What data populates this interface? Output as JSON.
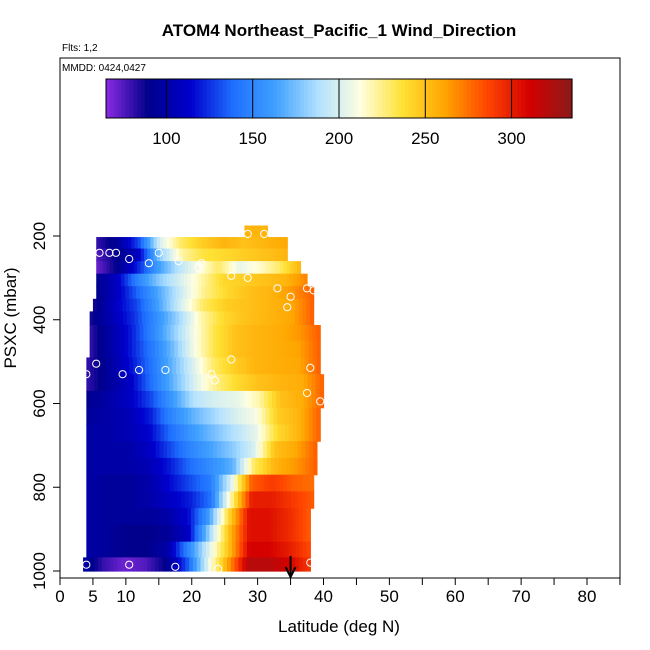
{
  "chart_data": {
    "type": "heatmap",
    "title": "ATOM4 Northeast_Pacific_1 Wind_Direction",
    "flights_note": "Flts: 1,2",
    "dates_note": "MMDD: 0424,0427",
    "xlabel": "Latitude (deg N)",
    "ylabel": "PSXC (mbar)",
    "xlim": [
      0,
      85
    ],
    "ylim": [
      1000,
      100
    ],
    "x_ticks": [
      0,
      5,
      10,
      20,
      30,
      40,
      50,
      60,
      70,
      80
    ],
    "y_ticks": [
      200,
      400,
      600,
      800,
      1000
    ],
    "colorbar": {
      "range": [
        65,
        335
      ],
      "ticks": [
        100,
        150,
        200,
        250,
        300
      ],
      "colors": [
        "#8a2be2",
        "#00008b",
        "#0000cd",
        "#1e6fff",
        "#40a0ff",
        "#b0e0ff",
        "#ffffe0",
        "#ffe135",
        "#ffa500",
        "#ff4500",
        "#d40000",
        "#8b1a1a"
      ]
    },
    "marker": {
      "latitude": 35,
      "label": "arrow"
    },
    "rows": [
      {
        "p": 190,
        "lat_min": 28,
        "lat_max": 31.5,
        "values": [
          255,
          255,
          255,
          255
        ]
      },
      {
        "p": 215,
        "lat_min": 5.5,
        "lat_max": 34.5,
        "values": [
          80,
          95,
          130,
          200,
          230,
          245,
          255,
          250,
          255,
          260
        ]
      },
      {
        "p": 245,
        "lat_min": 5.5,
        "lat_max": 34.5,
        "values": [
          75,
          90,
          110,
          180,
          220,
          235,
          240,
          245,
          250,
          255
        ]
      },
      {
        "p": 275,
        "lat_min": 5.5,
        "lat_max": 36.5,
        "values": [
          70,
          90,
          120,
          160,
          190,
          210,
          230,
          205,
          215,
          230,
          255
        ]
      },
      {
        "p": 305,
        "lat_min": 5.5,
        "lat_max": 37.5,
        "values": [
          90,
          110,
          150,
          180,
          200,
          220,
          240,
          245,
          250,
          255,
          270
        ]
      },
      {
        "p": 335,
        "lat_min": 5.5,
        "lat_max": 38.5,
        "values": [
          90,
          110,
          140,
          170,
          200,
          225,
          240,
          250,
          255,
          265,
          280
        ]
      },
      {
        "p": 365,
        "lat_min": 5,
        "lat_max": 38.5,
        "values": [
          85,
          110,
          130,
          165,
          200,
          230,
          245,
          250,
          255,
          260,
          280
        ]
      },
      {
        "p": 395,
        "lat_min": 4.5,
        "lat_max": 38.5,
        "values": [
          85,
          105,
          125,
          155,
          185,
          220,
          240,
          250,
          255,
          260,
          280
        ]
      },
      {
        "p": 430,
        "lat_min": 4.5,
        "lat_max": 39.5,
        "values": [
          80,
          100,
          120,
          150,
          180,
          210,
          235,
          250,
          255,
          258,
          265,
          280
        ]
      },
      {
        "p": 470,
        "lat_min": 4.5,
        "lat_max": 39.5,
        "values": [
          80,
          100,
          120,
          145,
          175,
          210,
          235,
          250,
          255,
          258,
          262,
          280
        ]
      },
      {
        "p": 510,
        "lat_min": 4,
        "lat_max": 39.5,
        "values": [
          80,
          95,
          115,
          140,
          170,
          200,
          230,
          245,
          255,
          258,
          260,
          280
        ]
      },
      {
        "p": 550,
        "lat_min": 4,
        "lat_max": 40,
        "values": [
          80,
          95,
          110,
          140,
          170,
          200,
          225,
          240,
          250,
          255,
          258,
          280
        ]
      },
      {
        "p": 590,
        "lat_min": 4,
        "lat_max": 40,
        "values": [
          90,
          100,
          110,
          130,
          160,
          190,
          200,
          205,
          220,
          250,
          258,
          280
        ]
      },
      {
        "p": 630,
        "lat_min": 4,
        "lat_max": 39.5,
        "values": [
          95,
          100,
          105,
          120,
          150,
          170,
          185,
          200,
          210,
          245,
          255,
          280
        ]
      },
      {
        "p": 670,
        "lat_min": 4,
        "lat_max": 39.5,
        "values": [
          100,
          100,
          105,
          115,
          140,
          160,
          175,
          190,
          205,
          240,
          255,
          280
        ]
      },
      {
        "p": 710,
        "lat_min": 4,
        "lat_max": 39,
        "values": [
          100,
          100,
          100,
          110,
          130,
          150,
          165,
          180,
          200,
          250,
          260,
          280
        ]
      },
      {
        "p": 750,
        "lat_min": 4,
        "lat_max": 39,
        "values": [
          100,
          100,
          100,
          105,
          120,
          140,
          155,
          170,
          230,
          255,
          265,
          280
        ]
      },
      {
        "p": 790,
        "lat_min": 4,
        "lat_max": 38.5,
        "values": [
          100,
          95,
          95,
          100,
          115,
          130,
          145,
          200,
          280,
          290,
          280,
          275
        ]
      },
      {
        "p": 830,
        "lat_min": 4,
        "lat_max": 38.5,
        "values": [
          100,
          95,
          95,
          100,
          110,
          120,
          140,
          220,
          300,
          300,
          290,
          280
        ]
      },
      {
        "p": 870,
        "lat_min": 4,
        "lat_max": 38,
        "values": [
          100,
          95,
          95,
          95,
          100,
          115,
          160,
          240,
          305,
          305,
          295,
          280
        ]
      },
      {
        "p": 910,
        "lat_min": 4,
        "lat_max": 38,
        "values": [
          100,
          95,
          90,
          90,
          95,
          110,
          180,
          250,
          305,
          305,
          295,
          280
        ]
      },
      {
        "p": 950,
        "lat_min": 4,
        "lat_max": 38,
        "values": [
          100,
          95,
          90,
          90,
          100,
          150,
          200,
          250,
          310,
          310,
          300,
          285
        ]
      },
      {
        "p": 985,
        "lat_min": 3.5,
        "lat_max": 38,
        "values": [
          100,
          80,
          70,
          75,
          90,
          130,
          200,
          260,
          320,
          320,
          310,
          290
        ]
      }
    ],
    "points": [
      {
        "lat": 28.5,
        "p": 195
      },
      {
        "lat": 31,
        "p": 195
      },
      {
        "lat": 6,
        "p": 240
      },
      {
        "lat": 7.5,
        "p": 240
      },
      {
        "lat": 8.5,
        "p": 240
      },
      {
        "lat": 10.5,
        "p": 255
      },
      {
        "lat": 13.5,
        "p": 265
      },
      {
        "lat": 15,
        "p": 240
      },
      {
        "lat": 18,
        "p": 260
      },
      {
        "lat": 21,
        "p": 275
      },
      {
        "lat": 21.5,
        "p": 265
      },
      {
        "lat": 26,
        "p": 295
      },
      {
        "lat": 28.5,
        "p": 300
      },
      {
        "lat": 33,
        "p": 325
      },
      {
        "lat": 35,
        "p": 345
      },
      {
        "lat": 37.5,
        "p": 325
      },
      {
        "lat": 38.5,
        "p": 330
      },
      {
        "lat": 34.5,
        "p": 370
      },
      {
        "lat": 5.5,
        "p": 505
      },
      {
        "lat": 4,
        "p": 530
      },
      {
        "lat": 9.5,
        "p": 530
      },
      {
        "lat": 12,
        "p": 520
      },
      {
        "lat": 16,
        "p": 520
      },
      {
        "lat": 23,
        "p": 530
      },
      {
        "lat": 26,
        "p": 495
      },
      {
        "lat": 38,
        "p": 515
      },
      {
        "lat": 23.5,
        "p": 545
      },
      {
        "lat": 37.5,
        "p": 575
      },
      {
        "lat": 39.5,
        "p": 595
      },
      {
        "lat": 4,
        "p": 985
      },
      {
        "lat": 10.5,
        "p": 985
      },
      {
        "lat": 17.5,
        "p": 990
      },
      {
        "lat": 24,
        "p": 995
      },
      {
        "lat": 38,
        "p": 980
      }
    ]
  }
}
